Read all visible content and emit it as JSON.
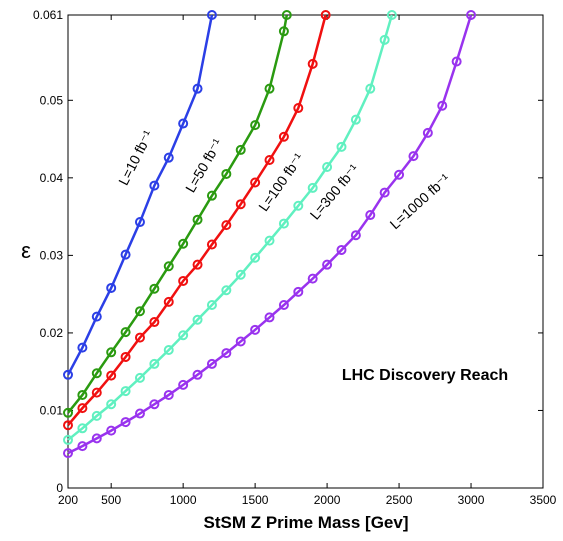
{
  "chart_data": {
    "type": "line",
    "xlabel": "StSM Z Prime Mass  [Gev]",
    "ylabel": "ε",
    "annotations": [
      "LHC Discovery Reach"
    ],
    "xlim": [
      200,
      3500
    ],
    "xticks": [
      200,
      500,
      1000,
      1500,
      2000,
      2500,
      3000,
      3500
    ],
    "ylim": [
      0,
      0.061
    ],
    "yticks": [
      0,
      0.01,
      0.02,
      0.03,
      0.04,
      0.05,
      0.061
    ],
    "series": [
      {
        "name": "L=10 fb⁻¹",
        "color": "#2b3fe6",
        "x": [
          200,
          300,
          400,
          500,
          600,
          700,
          800,
          900,
          1000,
          1100,
          1200
        ],
        "values": [
          0.0146,
          0.0181,
          0.0221,
          0.0258,
          0.0301,
          0.0343,
          0.039,
          0.0426,
          0.047,
          0.0515,
          0.061
        ]
      },
      {
        "name": "L=50 fb⁻¹",
        "color": "#2a9a10",
        "x": [
          200,
          300,
          400,
          500,
          600,
          700,
          800,
          900,
          1000,
          1100,
          1200,
          1300,
          1400,
          1500,
          1600,
          1700,
          1720
        ],
        "values": [
          0.0097,
          0.012,
          0.0148,
          0.0175,
          0.0201,
          0.0228,
          0.0257,
          0.0286,
          0.0315,
          0.0346,
          0.0377,
          0.0405,
          0.0436,
          0.0468,
          0.0515,
          0.0589,
          0.061
        ]
      },
      {
        "name": "L=100 fb⁻¹",
        "color": "#f01010",
        "x": [
          200,
          300,
          400,
          500,
          600,
          700,
          800,
          900,
          1000,
          1100,
          1200,
          1300,
          1400,
          1500,
          1600,
          1700,
          1800,
          1900,
          1990
        ],
        "values": [
          0.0081,
          0.0103,
          0.0123,
          0.0145,
          0.0169,
          0.0194,
          0.0214,
          0.024,
          0.0267,
          0.0288,
          0.0314,
          0.0339,
          0.0366,
          0.0394,
          0.0423,
          0.0453,
          0.049,
          0.0547,
          0.061
        ]
      },
      {
        "name": "L=300 fb⁻¹",
        "color": "#60f0c0",
        "x": [
          200,
          300,
          400,
          500,
          600,
          700,
          800,
          900,
          1000,
          1100,
          1200,
          1300,
          1400,
          1500,
          1600,
          1700,
          1800,
          1900,
          2000,
          2100,
          2200,
          2300,
          2400,
          2450
        ],
        "values": [
          0.0062,
          0.0077,
          0.0093,
          0.0108,
          0.0125,
          0.0142,
          0.016,
          0.0178,
          0.0197,
          0.0217,
          0.0236,
          0.0255,
          0.0275,
          0.0297,
          0.0319,
          0.0341,
          0.0364,
          0.0387,
          0.0414,
          0.044,
          0.0475,
          0.0515,
          0.0578,
          0.061
        ]
      },
      {
        "name": "L=1000 fb⁻¹",
        "color": "#9933ee",
        "x": [
          200,
          300,
          400,
          500,
          600,
          700,
          800,
          900,
          1000,
          1100,
          1200,
          1300,
          1400,
          1500,
          1600,
          1700,
          1800,
          1900,
          2000,
          2100,
          2200,
          2300,
          2400,
          2500,
          2600,
          2700,
          2800,
          2900,
          3000
        ],
        "values": [
          0.0045,
          0.0054,
          0.0064,
          0.0074,
          0.0085,
          0.0096,
          0.0108,
          0.012,
          0.0133,
          0.0146,
          0.016,
          0.0174,
          0.0189,
          0.0204,
          0.022,
          0.0236,
          0.0253,
          0.027,
          0.0288,
          0.0307,
          0.0326,
          0.0352,
          0.0381,
          0.0404,
          0.0428,
          0.0458,
          0.0493,
          0.055,
          0.061
        ]
      }
    ]
  }
}
